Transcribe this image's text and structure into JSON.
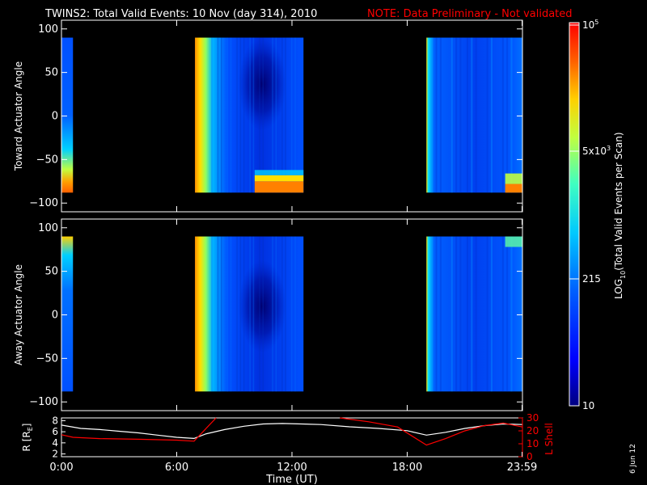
{
  "title": {
    "main": "TWINS2: Total Valid Events: 10 Nov (day 314), 2010",
    "note": "NOTE: Data Preliminary - Not validated"
  },
  "side_date": "6 Jun 12",
  "colorbar": {
    "label": "LOG10(Total Valid Events per Scan)",
    "label_main": "LOG",
    "label_sub": "10",
    "label_rest": "(Total Valid Events per Scan)",
    "ticks": [
      "10",
      "215",
      "5x10",
      "10"
    ],
    "tick_labels": [
      {
        "base": "10",
        "exp": ""
      },
      {
        "base": "215",
        "exp": ""
      },
      {
        "base": "5x10",
        "exp": "3"
      },
      {
        "base": "10",
        "exp": "5"
      }
    ],
    "colors": [
      "#000080",
      "#0000ff",
      "#0060ff",
      "#00c8ff",
      "#40ffc0",
      "#c0ff40",
      "#ffd000",
      "#ff6000",
      "#ff0000"
    ]
  },
  "chart_data": [
    {
      "type": "heatmap",
      "ylabel": "Toward Actuator Angle",
      "ylim": [
        -110,
        110
      ],
      "yticks": [
        100,
        50,
        0,
        -50,
        -100
      ],
      "xlim": [
        0,
        24
      ],
      "data_blocks": [
        {
          "t_start": 0.0,
          "t_end": 0.6,
          "a_min": -88,
          "a_max": 90
        },
        {
          "t_start": 6.95,
          "t_end": 12.6,
          "a_min": -88,
          "a_max": 90
        },
        {
          "t_start": 19.0,
          "t_end": 24.0,
          "a_min": -88,
          "a_max": 90
        }
      ]
    },
    {
      "type": "heatmap",
      "ylabel": "Away Actuator Angle",
      "ylim": [
        -110,
        110
      ],
      "yticks": [
        100,
        50,
        0,
        -50,
        -100
      ],
      "xlim": [
        0,
        24
      ],
      "data_blocks": [
        {
          "t_start": 0.0,
          "t_end": 0.6,
          "a_min": -88,
          "a_max": 90
        },
        {
          "t_start": 6.95,
          "t_end": 12.6,
          "a_min": -88,
          "a_max": 90
        },
        {
          "t_start": 19.0,
          "t_end": 24.0,
          "a_min": -88,
          "a_max": 90
        }
      ]
    },
    {
      "type": "line",
      "xlabel": "Time (UT)",
      "xlim": [
        0,
        24
      ],
      "xticks": [
        0,
        6,
        12,
        18,
        23.98
      ],
      "xtick_labels": [
        "0:00",
        "6:00",
        "12:00",
        "18:00",
        "23:59"
      ],
      "left_axis": {
        "label": "R [RE]",
        "label_main": "R [R",
        "label_sub": "E",
        "label_end": "]",
        "ylim": [
          1.5,
          8.5
        ],
        "yticks": [
          2,
          4,
          6,
          8
        ]
      },
      "right_axis": {
        "label": "L Shell",
        "ylim": [
          0,
          30
        ],
        "yticks": [
          0,
          10,
          20,
          30
        ],
        "yticks_labels": [
          "0",
          "10",
          "20",
          "30"
        ],
        "color": "#ff0000"
      },
      "series": [
        {
          "color": "#ffffff",
          "x": [
            0,
            1,
            2,
            3,
            4,
            5,
            6,
            6.9,
            7.5,
            8.5,
            9.5,
            10.5,
            11.5,
            12.5,
            13.5,
            15,
            16.5,
            18,
            19,
            20,
            21,
            22,
            23,
            24
          ],
          "values": [
            7.2,
            6.6,
            6.4,
            6.1,
            5.8,
            5.4,
            5.0,
            4.8,
            5.6,
            6.4,
            7.0,
            7.4,
            7.5,
            7.4,
            7.3,
            6.9,
            6.6,
            6.2,
            5.4,
            5.9,
            6.6,
            7.1,
            7.4,
            7.3
          ]
        },
        {
          "color": "#ff0000",
          "segments": [
            {
              "x": [
                0,
                0.6,
                2,
                4,
                6,
                6.9,
                8.05
              ],
              "values": [
                17,
                15,
                14,
                13.5,
                12.8,
                12,
                30
              ]
            },
            {
              "x": [
                14.5,
                16,
                17.5,
                19.0,
                20,
                21,
                22,
                23,
                24
              ],
              "values": [
                30,
                27,
                23,
                9,
                14,
                20,
                24,
                26,
                23
              ]
            }
          ]
        }
      ]
    }
  ]
}
